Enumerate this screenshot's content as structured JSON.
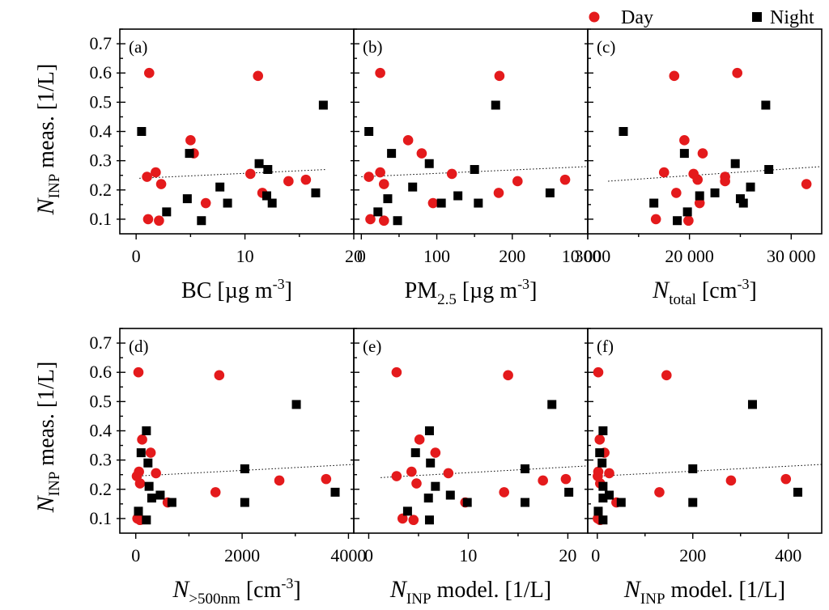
{
  "legend": {
    "day_label": "Day",
    "night_label": "Night",
    "day_color": "#e41a1c",
    "night_color": "#000000"
  },
  "y_axis": {
    "title_main": "N",
    "title_sub": "INP",
    "title_rest": " meas. [1/L]",
    "ticks": [
      0.1,
      0.2,
      0.3,
      0.4,
      0.5,
      0.6,
      0.7
    ],
    "tick_labels": [
      "0.1",
      "0.2",
      "0.3",
      "0.4",
      "0.5",
      "0.6",
      "0.7"
    ],
    "ylim": [
      0.05,
      0.75
    ]
  },
  "chart_data": [
    {
      "type": "scatter",
      "panel": "(a)",
      "xlabel_parts": [
        {
          "t": "BC [µg m",
          "style": "normal"
        },
        {
          "t": "-3",
          "style": "sup"
        },
        {
          "t": "]",
          "style": "normal"
        }
      ],
      "xlim": [
        -1.5,
        20
      ],
      "xticks": [
        0,
        10,
        20
      ],
      "xtick_labels": [
        "0",
        "10",
        "20"
      ],
      "fit": {
        "x": [
          0.3,
          17.5
        ],
        "y": [
          0.24,
          0.27
        ]
      },
      "series": [
        {
          "name": "Day",
          "color": "#e41a1c",
          "marker": "circle",
          "points": [
            [
              1.2,
              0.6
            ],
            [
              11.2,
              0.59
            ],
            [
              5.0,
              0.37
            ],
            [
              5.3,
              0.325
            ],
            [
              1.8,
              0.26
            ],
            [
              1.0,
              0.245
            ],
            [
              2.3,
              0.22
            ],
            [
              10.5,
              0.255
            ],
            [
              11.6,
              0.19
            ],
            [
              14.0,
              0.23
            ],
            [
              15.6,
              0.235
            ],
            [
              6.4,
              0.155
            ],
            [
              1.1,
              0.1
            ],
            [
              2.1,
              0.095
            ]
          ]
        },
        {
          "name": "Night",
          "color": "#000000",
          "marker": "square",
          "points": [
            [
              0.5,
              0.4
            ],
            [
              17.2,
              0.49
            ],
            [
              4.9,
              0.325
            ],
            [
              11.3,
              0.29
            ],
            [
              12.1,
              0.27
            ],
            [
              7.7,
              0.21
            ],
            [
              4.7,
              0.17
            ],
            [
              12.0,
              0.18
            ],
            [
              12.5,
              0.155
            ],
            [
              16.5,
              0.19
            ],
            [
              8.4,
              0.155
            ],
            [
              2.8,
              0.125
            ],
            [
              6.0,
              0.095
            ]
          ]
        }
      ]
    },
    {
      "type": "scatter",
      "panel": "(b)",
      "xlabel_parts": [
        {
          "t": "PM",
          "style": "normal"
        },
        {
          "t": "2.5",
          "style": "sub"
        },
        {
          "t": " [µg m",
          "style": "normal"
        },
        {
          "t": "-3",
          "style": "sup"
        },
        {
          "t": "]",
          "style": "normal"
        }
      ],
      "xlim": [
        -10,
        300
      ],
      "xticks": [
        0,
        100,
        200,
        300
      ],
      "xtick_labels": [
        "0",
        "100",
        "200",
        "300"
      ],
      "fit": {
        "x": [
          0,
          300
        ],
        "y": [
          0.245,
          0.28
        ]
      },
      "series": [
        {
          "name": "Day",
          "color": "#e41a1c",
          "marker": "circle",
          "points": [
            [
              25,
              0.6
            ],
            [
              183,
              0.59
            ],
            [
              62,
              0.37
            ],
            [
              80,
              0.325
            ],
            [
              25,
              0.26
            ],
            [
              10,
              0.245
            ],
            [
              30,
              0.22
            ],
            [
              120,
              0.255
            ],
            [
              182,
              0.19
            ],
            [
              207,
              0.23
            ],
            [
              270,
              0.235
            ],
            [
              95,
              0.155
            ],
            [
              12,
              0.1
            ],
            [
              30,
              0.095
            ]
          ]
        },
        {
          "name": "Night",
          "color": "#000000",
          "marker": "square",
          "points": [
            [
              10,
              0.4
            ],
            [
              178,
              0.49
            ],
            [
              40,
              0.325
            ],
            [
              90,
              0.29
            ],
            [
              150,
              0.27
            ],
            [
              68,
              0.21
            ],
            [
              35,
              0.17
            ],
            [
              128,
              0.18
            ],
            [
              106,
              0.155
            ],
            [
              250,
              0.19
            ],
            [
              155,
              0.155
            ],
            [
              22,
              0.125
            ],
            [
              48,
              0.095
            ]
          ]
        }
      ]
    },
    {
      "type": "scatter",
      "panel": "(c)",
      "xlabel_parts": [
        {
          "t": "N",
          "style": "italic"
        },
        {
          "t": "total",
          "style": "sub"
        },
        {
          "t": " [cm",
          "style": "normal"
        },
        {
          "t": "-3",
          "style": "sup"
        },
        {
          "t": "]",
          "style": "normal"
        }
      ],
      "xlim": [
        10000,
        33000
      ],
      "xticks": [
        10000,
        20000,
        30000
      ],
      "xtick_labels": [
        "10 000",
        "20 000",
        "30 000"
      ],
      "fit": {
        "x": [
          12000,
          33000
        ],
        "y": [
          0.23,
          0.28
        ]
      },
      "series": [
        {
          "name": "Day",
          "color": "#e41a1c",
          "marker": "circle",
          "points": [
            [
              18500,
              0.59
            ],
            [
              24700,
              0.6
            ],
            [
              19500,
              0.37
            ],
            [
              21300,
              0.325
            ],
            [
              17500,
              0.26
            ],
            [
              20400,
              0.255
            ],
            [
              20800,
              0.235
            ],
            [
              23500,
              0.245
            ],
            [
              23500,
              0.23
            ],
            [
              31500,
              0.22
            ],
            [
              18700,
              0.19
            ],
            [
              21000,
              0.155
            ],
            [
              16700,
              0.1
            ],
            [
              19900,
              0.095
            ]
          ]
        },
        {
          "name": "Night",
          "color": "#000000",
          "marker": "square",
          "points": [
            [
              13500,
              0.4
            ],
            [
              27500,
              0.49
            ],
            [
              19500,
              0.325
            ],
            [
              24500,
              0.29
            ],
            [
              27800,
              0.27
            ],
            [
              26000,
              0.21
            ],
            [
              22500,
              0.19
            ],
            [
              21000,
              0.18
            ],
            [
              25000,
              0.17
            ],
            [
              16500,
              0.155
            ],
            [
              25300,
              0.155
            ],
            [
              19800,
              0.125
            ],
            [
              18800,
              0.095
            ]
          ]
        }
      ]
    },
    {
      "type": "scatter",
      "panel": "(d)",
      "xlabel_parts": [
        {
          "t": "N",
          "style": "italic"
        },
        {
          "t": ">500nm",
          "style": "sub"
        },
        {
          "t": " [cm",
          "style": "normal"
        },
        {
          "t": "-3",
          "style": "sup"
        },
        {
          "t": "]",
          "style": "normal"
        }
      ],
      "xlim": [
        -300,
        4100
      ],
      "xticks": [
        0,
        2000,
        4000
      ],
      "xtick_labels": [
        "0",
        "2000",
        "4000"
      ],
      "fit": {
        "x": [
          0,
          4100
        ],
        "y": [
          0.245,
          0.285
        ]
      },
      "series": [
        {
          "name": "Day",
          "color": "#e41a1c",
          "marker": "circle",
          "points": [
            [
              50,
              0.6
            ],
            [
              1570,
              0.59
            ],
            [
              120,
              0.37
            ],
            [
              280,
              0.325
            ],
            [
              60,
              0.26
            ],
            [
              20,
              0.245
            ],
            [
              80,
              0.22
            ],
            [
              380,
              0.255
            ],
            [
              1500,
              0.19
            ],
            [
              2700,
              0.23
            ],
            [
              3580,
              0.235
            ],
            [
              600,
              0.155
            ],
            [
              30,
              0.1
            ],
            [
              80,
              0.095
            ]
          ]
        },
        {
          "name": "Night",
          "color": "#000000",
          "marker": "square",
          "points": [
            [
              200,
              0.4
            ],
            [
              3020,
              0.49
            ],
            [
              100,
              0.325
            ],
            [
              230,
              0.29
            ],
            [
              2050,
              0.27
            ],
            [
              250,
              0.21
            ],
            [
              300,
              0.17
            ],
            [
              460,
              0.18
            ],
            [
              680,
              0.155
            ],
            [
              3750,
              0.19
            ],
            [
              2050,
              0.155
            ],
            [
              50,
              0.125
            ],
            [
              200,
              0.095
            ]
          ]
        }
      ]
    },
    {
      "type": "scatter",
      "panel": "(e)",
      "xlabel_parts": [
        {
          "t": "N",
          "style": "italic"
        },
        {
          "t": "INP",
          "style": "sub"
        },
        {
          "t": " model. [1/L]",
          "style": "normal"
        }
      ],
      "xlim": [
        -1.5,
        22
      ],
      "xticks": [
        0,
        10,
        20
      ],
      "xtick_labels": [
        "0",
        "10",
        "20"
      ],
      "fit": {
        "x": [
          1.2,
          22
        ],
        "y": [
          0.24,
          0.28
        ]
      },
      "series": [
        {
          "name": "Day",
          "color": "#e41a1c",
          "marker": "circle",
          "points": [
            [
              2.8,
              0.6
            ],
            [
              14.0,
              0.59
            ],
            [
              5.1,
              0.37
            ],
            [
              6.7,
              0.325
            ],
            [
              4.3,
              0.26
            ],
            [
              2.8,
              0.245
            ],
            [
              4.8,
              0.22
            ],
            [
              8.0,
              0.255
            ],
            [
              13.6,
              0.19
            ],
            [
              17.5,
              0.23
            ],
            [
              19.8,
              0.235
            ],
            [
              9.7,
              0.155
            ],
            [
              3.4,
              0.1
            ],
            [
              4.5,
              0.095
            ]
          ]
        },
        {
          "name": "Night",
          "color": "#000000",
          "marker": "square",
          "points": [
            [
              6.1,
              0.4
            ],
            [
              18.4,
              0.49
            ],
            [
              4.7,
              0.325
            ],
            [
              6.2,
              0.29
            ],
            [
              15.7,
              0.27
            ],
            [
              6.7,
              0.21
            ],
            [
              6.0,
              0.17
            ],
            [
              8.2,
              0.18
            ],
            [
              9.9,
              0.155
            ],
            [
              20.1,
              0.19
            ],
            [
              15.7,
              0.155
            ],
            [
              3.9,
              0.125
            ],
            [
              6.1,
              0.095
            ]
          ]
        }
      ]
    },
    {
      "type": "scatter",
      "panel": "(f)",
      "xlabel_parts": [
        {
          "t": "N",
          "style": "italic"
        },
        {
          "t": "INP",
          "style": "sub"
        },
        {
          "t": " model. [1/L]",
          "style": "normal"
        }
      ],
      "xlim": [
        -20,
        470
      ],
      "xticks": [
        0,
        200,
        400
      ],
      "xtick_labels": [
        "0",
        "200",
        "400"
      ],
      "fit": {
        "x": [
          0,
          470
        ],
        "y": [
          0.245,
          0.285
        ]
      },
      "series": [
        {
          "name": "Day",
          "color": "#e41a1c",
          "marker": "circle",
          "points": [
            [
              2,
              0.6
            ],
            [
              145,
              0.59
            ],
            [
              5,
              0.37
            ],
            [
              15,
              0.325
            ],
            [
              2,
              0.26
            ],
            [
              1,
              0.245
            ],
            [
              6,
              0.22
            ],
            [
              25,
              0.255
            ],
            [
              130,
              0.19
            ],
            [
              280,
              0.23
            ],
            [
              395,
              0.235
            ],
            [
              40,
              0.155
            ],
            [
              1,
              0.1
            ],
            [
              6,
              0.095
            ]
          ]
        },
        {
          "name": "Night",
          "color": "#000000",
          "marker": "square",
          "points": [
            [
              12,
              0.4
            ],
            [
              325,
              0.49
            ],
            [
              5,
              0.325
            ],
            [
              10,
              0.29
            ],
            [
              200,
              0.27
            ],
            [
              12,
              0.21
            ],
            [
              12,
              0.17
            ],
            [
              25,
              0.18
            ],
            [
              50,
              0.155
            ],
            [
              420,
              0.19
            ],
            [
              200,
              0.155
            ],
            [
              2,
              0.125
            ],
            [
              12,
              0.095
            ]
          ]
        }
      ]
    }
  ]
}
